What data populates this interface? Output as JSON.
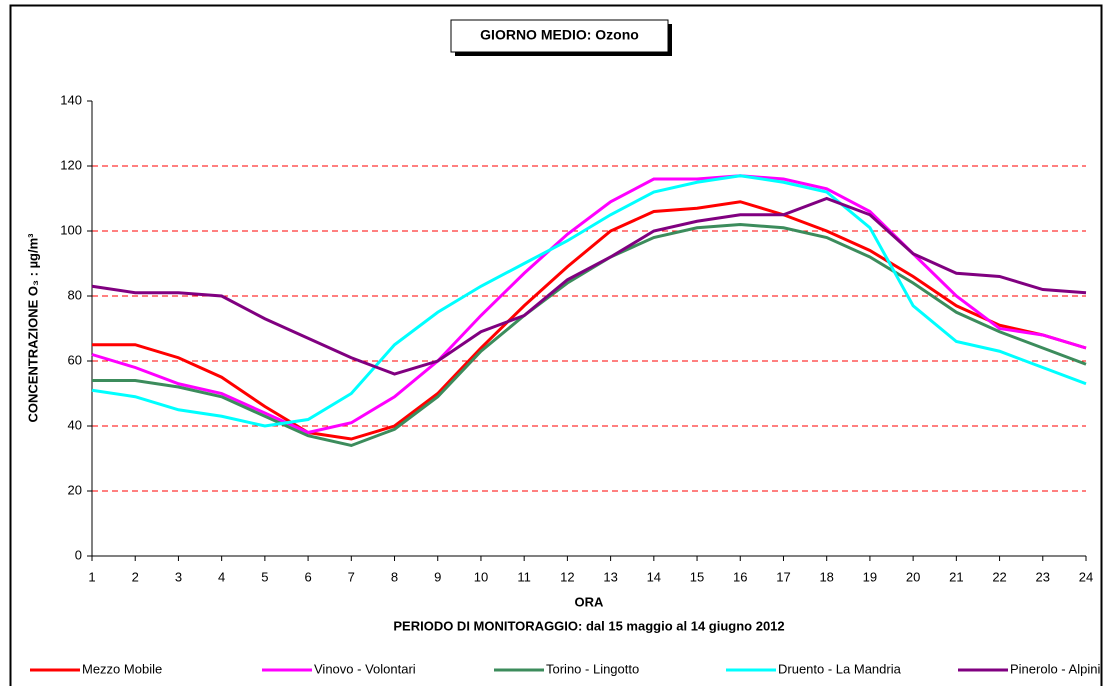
{
  "chart_data": {
    "type": "line",
    "title": "GIORNO MEDIO: Ozono",
    "x_label": "ORA",
    "x_sublabel": "PERIODO DI MONITORAGGIO: dal 15 maggio al 14 giugno 2012",
    "y_label": "CONCENTRAZIONE O₃ : µg/m³",
    "x": [
      1,
      2,
      3,
      4,
      5,
      6,
      7,
      8,
      9,
      10,
      11,
      12,
      13,
      14,
      15,
      16,
      17,
      18,
      19,
      20,
      21,
      22,
      23,
      24
    ],
    "xlim": [
      1,
      24
    ],
    "xticks": [
      1,
      2,
      3,
      4,
      5,
      6,
      7,
      8,
      9,
      10,
      11,
      12,
      13,
      14,
      15,
      16,
      17,
      18,
      19,
      20,
      21,
      22,
      23,
      24
    ],
    "ylim": [
      0,
      140
    ],
    "yticks": [
      0,
      20,
      40,
      60,
      80,
      100,
      120,
      140
    ],
    "grid": true,
    "grid_color": "#ff0000",
    "legend": "bottom",
    "series": [
      {
        "name": "Mezzo Mobile",
        "color": "#ff0000",
        "values": [
          65,
          65,
          61,
          55,
          46,
          38,
          36,
          40,
          50,
          64,
          77,
          89,
          100,
          106,
          107,
          109,
          105,
          100,
          94,
          86,
          77,
          71,
          68,
          64
        ]
      },
      {
        "name": "Vinovo - Volontari",
        "color": "#ff00ff",
        "values": [
          62,
          58,
          53,
          50,
          44,
          38,
          41,
          49,
          60,
          74,
          87,
          99,
          109,
          116,
          116,
          117,
          116,
          113,
          106,
          93,
          80,
          70,
          68,
          64
        ]
      },
      {
        "name": "Torino - Lingotto",
        "color": "#3c8c5c",
        "values": [
          54,
          54,
          52,
          49,
          43,
          37,
          34,
          39,
          49,
          63,
          74,
          84,
          92,
          98,
          101,
          102,
          101,
          98,
          92,
          84,
          75,
          69,
          64,
          59
        ]
      },
      {
        "name": "Druento - La Mandria",
        "color": "#00ffff",
        "values": [
          51,
          49,
          45,
          43,
          40,
          42,
          50,
          65,
          75,
          83,
          90,
          97,
          105,
          112,
          115,
          117,
          115,
          112,
          101,
          77,
          66,
          63,
          58,
          53
        ]
      },
      {
        "name": "Pinerolo - Alpini",
        "color": "#800080",
        "values": [
          83,
          81,
          81,
          80,
          73,
          67,
          61,
          56,
          60,
          69,
          74,
          85,
          92,
          100,
          103,
          105,
          105,
          110,
          105,
          93,
          87,
          86,
          82,
          81
        ]
      }
    ]
  }
}
